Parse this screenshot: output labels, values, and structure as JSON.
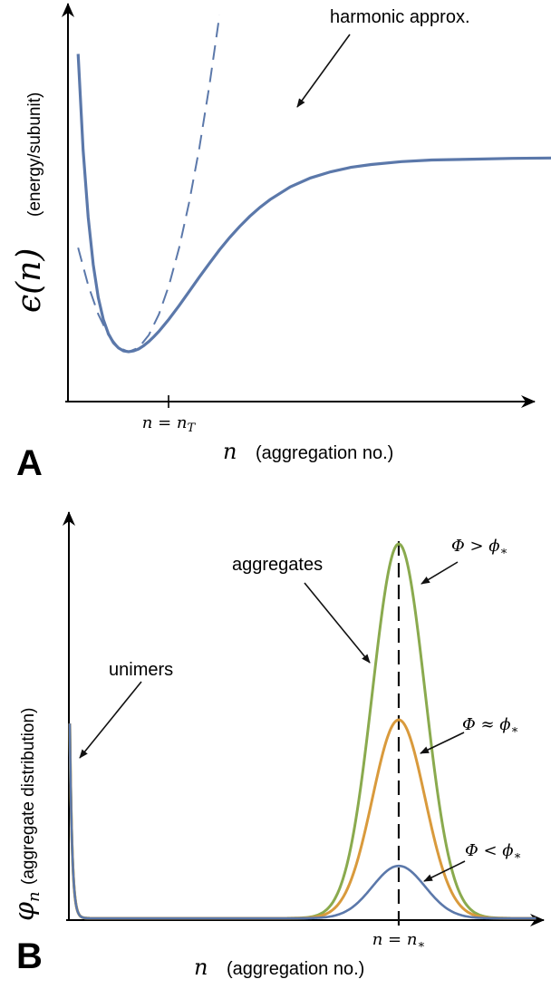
{
  "colors": {
    "axis": "#000000",
    "blue": "#5b78aa",
    "green": "#8aaa4e",
    "orange": "#d99a3c",
    "marker": "#111111"
  },
  "chart_data": [
    {
      "type": "line",
      "panel_label": "A",
      "ylabel_symbol": "ϵ(n)",
      "ylabel_text": "(energy/subunit)",
      "xlabel_symbol": "n",
      "xlabel_text": "(aggregation no.)",
      "xtick_label": "n = n_T",
      "xtick_main": "n = n",
      "xtick_sub": "T",
      "annotations": [
        {
          "text": "harmonic approx."
        }
      ],
      "series": [
        {
          "style": "solid",
          "color": "#5b78aa",
          "x": [
            0.05,
            0.1,
            0.15,
            0.2,
            0.25,
            0.3,
            0.35,
            0.4,
            0.45,
            0.5,
            0.55,
            0.6,
            0.65,
            0.7,
            0.75,
            0.8,
            0.85,
            0.9,
            0.95,
            1.0,
            1.1,
            1.2,
            1.3,
            1.4,
            1.5,
            1.6,
            1.7,
            1.8,
            1.9,
            2.0,
            2.2,
            2.4,
            2.6,
            2.8,
            3.0,
            3.3,
            3.6,
            4.0,
            4.4,
            4.8
          ],
          "y": [
            10.0,
            7.3,
            4.95,
            3.3,
            2.13,
            1.33,
            0.79,
            0.44,
            0.22,
            0.09,
            0.02,
            0.0,
            0.02,
            0.07,
            0.15,
            0.25,
            0.37,
            0.5,
            0.65,
            0.8,
            1.13,
            1.48,
            1.83,
            2.17,
            2.5,
            2.8,
            3.07,
            3.32,
            3.54,
            3.73,
            4.04,
            4.26,
            4.41,
            4.52,
            4.59,
            4.66,
            4.7,
            4.72,
            4.74,
            4.75
          ]
        },
        {
          "style": "dashed",
          "color": "#5b78aa",
          "x": [
            0.1,
            0.2,
            0.3,
            0.4,
            0.5,
            0.6,
            0.7,
            0.8,
            0.9,
            1.0,
            1.1,
            1.2,
            1.3,
            1.4,
            1.5,
            1.6,
            1.7,
            1.8,
            1.9,
            2.0
          ],
          "y": [
            2.55,
            1.63,
            0.92,
            0.41,
            0.1,
            0.0,
            0.1,
            0.41,
            0.92,
            1.63,
            2.55,
            3.67,
            5.0,
            6.53,
            8.26,
            10.2,
            12.3,
            14.7,
            17.2,
            20.0
          ]
        }
      ]
    },
    {
      "type": "line",
      "panel_label": "B",
      "ylabel_symbol": "φ",
      "ylabel_sub": "n",
      "ylabel_text": "(aggregate distribution)",
      "xlabel_symbol": "n",
      "xlabel_text": "(aggregation no.)",
      "xtick_main": "n = n",
      "xtick_sub": "∗",
      "annotations": [
        {
          "text": "unimers"
        },
        {
          "text": "aggregates"
        },
        {
          "text": "Φ > ϕ∗",
          "main": "Φ > ϕ",
          "sub": "∗"
        },
        {
          "text": "Φ ≈ ϕ∗",
          "main": "Φ ≈ ϕ",
          "sub": "∗"
        },
        {
          "text": "Φ < ϕ∗",
          "main": "Φ < ϕ",
          "sub": "∗"
        }
      ],
      "series": [
        {
          "color": "#8aaa4e",
          "label": "Φ > ϕ∗",
          "peak": 1.0,
          "unimer": 0.52,
          "center": 1.0,
          "width": 0.06
        },
        {
          "color": "#d99a3c",
          "label": "Φ ≈ ϕ∗",
          "peak": 0.53,
          "unimer": 0.52,
          "center": 1.0,
          "width": 0.06
        },
        {
          "color": "#5b78aa",
          "label": "Φ < ϕ∗",
          "peak": 0.14,
          "unimer": 0.52,
          "center": 1.0,
          "width": 0.06
        }
      ]
    }
  ]
}
